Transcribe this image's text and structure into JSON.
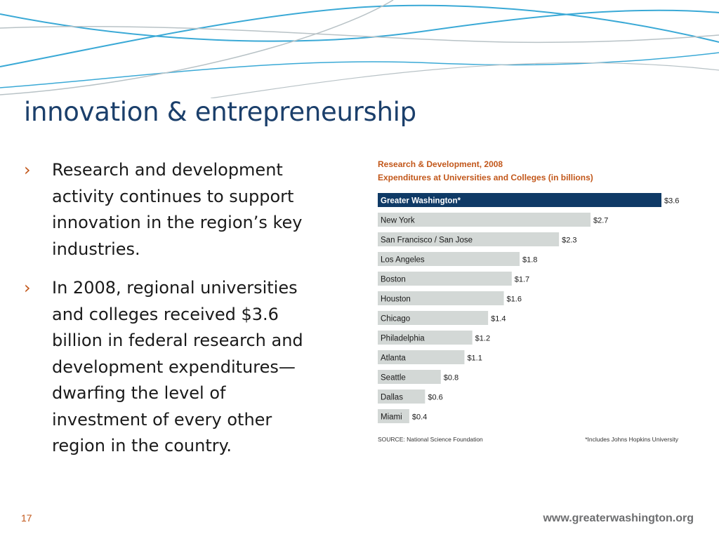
{
  "slide": {
    "title": "innovation & entrepreneurship",
    "bullets": [
      "Research and development activity continues to support innovation in the region’s key industries.",
      "In 2008, regional universities and colleges received $3.6 billion in federal research and development expenditures—dwarfing the level of investment of every other region in the country."
    ],
    "bullet_marker": "›",
    "page_number": "17",
    "footer_url": "www.greaterwashington.org"
  },
  "colors": {
    "title": "#1b3f6b",
    "accent": "#c2571a",
    "highlight_bar": "#0f3a66",
    "bar": "#d3d8d6",
    "wave_blue": "#3aa9d6",
    "wave_gray": "#b8c2c6"
  },
  "chart_data": {
    "type": "bar",
    "orientation": "horizontal",
    "title": "Research & Development, 2008",
    "subtitle": "Expenditures at Universities and Colleges (in billions)",
    "categories": [
      "Greater Washington*",
      "New York",
      "San Francisco / San Jose",
      "Los Angeles",
      "Boston",
      "Houston",
      "Chicago",
      "Philadelphia",
      "Atlanta",
      "Seattle",
      "Dallas",
      "Miami"
    ],
    "values": [
      3.6,
      2.7,
      2.3,
      1.8,
      1.7,
      1.6,
      1.4,
      1.2,
      1.1,
      0.8,
      0.6,
      0.4
    ],
    "value_labels": [
      "$3.6",
      "$2.7",
      "$2.3",
      "$1.8",
      "$1.7",
      "$1.6",
      "$1.4",
      "$1.2",
      "$1.1",
      "$0.8",
      "$0.6",
      "$0.4"
    ],
    "highlight_index": 0,
    "xlim": [
      0,
      3.6
    ],
    "source_note": "SOURCE:  National Science Foundation",
    "footnote": "*Includes Johns Hopkins University"
  }
}
